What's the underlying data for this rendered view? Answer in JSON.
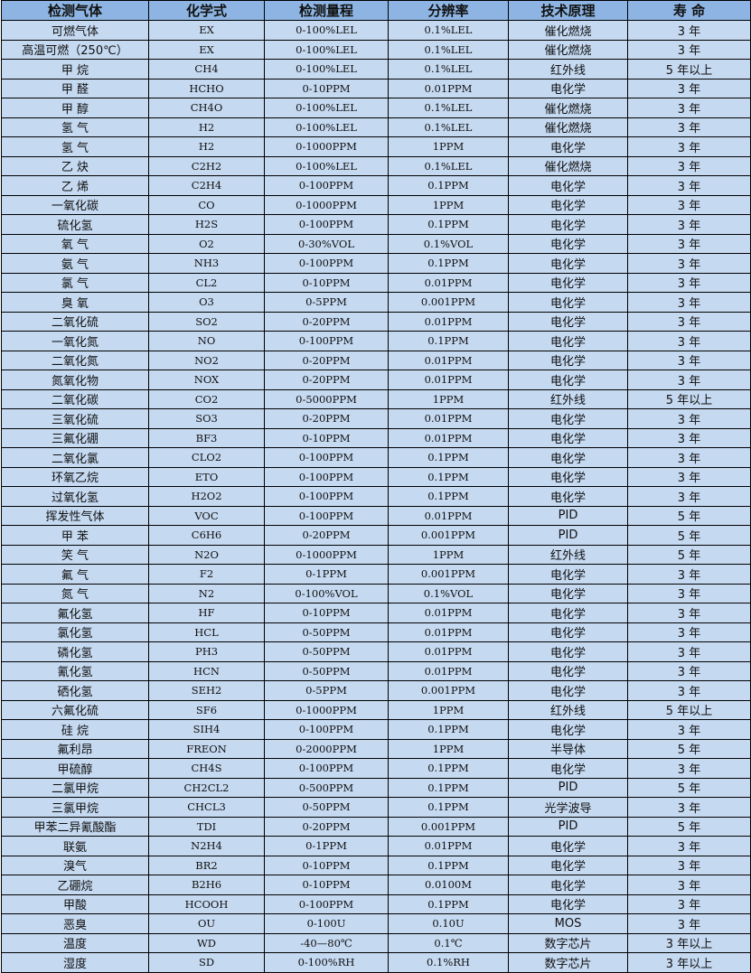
{
  "colors": {
    "header_bg": "#8db4e2",
    "row_bg": "#c5d9f1",
    "border": "#000000"
  },
  "headers": [
    "检测气体",
    "化学式",
    "检测量程",
    "分辨率",
    "技术原理",
    "寿 命"
  ],
  "rows": [
    [
      "可燃气体",
      "EX",
      "0-100%LEL",
      "0.1%LEL",
      "催化燃烧",
      "3 年"
    ],
    [
      "高温可燃（250℃）",
      "EX",
      "0-100%LEL",
      "0.1%LEL",
      "催化燃烧",
      "3 年"
    ],
    [
      "甲 烷",
      "CH4",
      "0-100%LEL",
      "0.1%LEL",
      "红外线",
      "5 年以上"
    ],
    [
      "甲 醛",
      "HCHO",
      "0-10PPM",
      "0.01PPM",
      "电化学",
      "3 年"
    ],
    [
      "甲 醇",
      "CH4O",
      "0-100%LEL",
      "0.1%LEL",
      "催化燃烧",
      "3 年"
    ],
    [
      "氢 气",
      "H2",
      "0-100%LEL",
      "0.1%LEL",
      "催化燃烧",
      "3 年"
    ],
    [
      "氢 气",
      "H2",
      "0-1000PPM",
      "1PPM",
      "电化学",
      "3 年"
    ],
    [
      "乙 炔",
      "C2H2",
      "0-100%LEL",
      "0.1%LEL",
      "催化燃烧",
      "3 年"
    ],
    [
      "乙 烯",
      "C2H4",
      "0-100PPM",
      "0.1PPM",
      "电化学",
      "3 年"
    ],
    [
      "一氧化碳",
      "CO",
      "0-1000PPM",
      "1PPM",
      "电化学",
      "3 年"
    ],
    [
      "硫化氢",
      "H2S",
      "0-100PPM",
      "0.1PPM",
      "电化学",
      "3 年"
    ],
    [
      "氧 气",
      "O2",
      "0-30%VOL",
      "0.1%VOL",
      "电化学",
      "3 年"
    ],
    [
      "氨 气",
      "NH3",
      "0-100PPM",
      "0.1PPM",
      "电化学",
      "3 年"
    ],
    [
      "氯 气",
      "CL2",
      "0-10PPM",
      "0.01PPM",
      "电化学",
      "3 年"
    ],
    [
      "臭 氧",
      "O3",
      "0-5PPM",
      "0.001PPM",
      "电化学",
      "3 年"
    ],
    [
      "二氧化硫",
      "SO2",
      "0-20PPM",
      "0.01PPM",
      "电化学",
      "3 年"
    ],
    [
      "一氧化氮",
      "NO",
      "0-100PPM",
      "0.1PPM",
      "电化学",
      "3 年"
    ],
    [
      "二氧化氮",
      "NO2",
      "0-20PPM",
      "0.01PPM",
      "电化学",
      "3 年"
    ],
    [
      "氮氧化物",
      "NOX",
      "0-20PPM",
      "0.01PPM",
      "电化学",
      "3 年"
    ],
    [
      "二氧化碳",
      "CO2",
      "0-5000PPM",
      "1PPM",
      "红外线",
      "5 年以上"
    ],
    [
      "三氧化硫",
      "SO3",
      "0-20PPM",
      "0.01PPM",
      "电化学",
      "3 年"
    ],
    [
      "三氟化硼",
      "BF3",
      "0-10PPM",
      "0.01PPM",
      "电化学",
      "3 年"
    ],
    [
      "二氧化氯",
      "CLO2",
      "0-100PPM",
      "0.1PPM",
      "电化学",
      "3 年"
    ],
    [
      "环氧乙烷",
      "ETO",
      "0-100PPM",
      "0.1PPM",
      "电化学",
      "3 年"
    ],
    [
      "过氧化氢",
      "H2O2",
      "0-100PPM",
      "0.1PPM",
      "电化学",
      "3 年"
    ],
    [
      "挥发性气体",
      "VOC",
      "0-100PPM",
      "0.01PPM",
      "PID",
      "5 年"
    ],
    [
      "甲 苯",
      "C6H6",
      "0-20PPM",
      "0.001PPM",
      "PID",
      "5 年"
    ],
    [
      "笑 气",
      "N2O",
      "0-1000PPM",
      "1PPM",
      "红外线",
      "5 年"
    ],
    [
      "氟 气",
      "F2",
      "0-1PPM",
      "0.001PPM",
      "电化学",
      "3 年"
    ],
    [
      "氮 气",
      "N2",
      "0-100%VOL",
      "0.1%VOL",
      "电化学",
      "3 年"
    ],
    [
      "氟化氢",
      "HF",
      "0-10PPM",
      "0.01PPM",
      "电化学",
      "3 年"
    ],
    [
      "氯化氢",
      "HCL",
      "0-50PPM",
      "0.01PPM",
      "电化学",
      "3 年"
    ],
    [
      "磷化氢",
      "PH3",
      "0-50PPM",
      "0.01PPM",
      "电化学",
      "3 年"
    ],
    [
      "氰化氢",
      "HCN",
      "0-50PPM",
      "0.01PPM",
      "电化学",
      "3 年"
    ],
    [
      "硒化氢",
      "SEH2",
      "0-5PPM",
      "0.001PPM",
      "电化学",
      "3 年"
    ],
    [
      "六氟化硫",
      "SF6",
      "0-1000PPM",
      "1PPM",
      "红外线",
      "5 年以上"
    ],
    [
      "硅 烷",
      "SIH4",
      "0-100PPM",
      "0.1PPM",
      "电化学",
      "3 年"
    ],
    [
      "氟利昂",
      "FREON",
      "0-2000PPM",
      "1PPM",
      "半导体",
      "5 年"
    ],
    [
      "甲硫醇",
      "CH4S",
      "0-100PPM",
      "0.1PPM",
      "电化学",
      "3 年"
    ],
    [
      "二氯甲烷",
      "CH2CL2",
      "0-500PPM",
      "0.1PPM",
      "PID",
      "5 年"
    ],
    [
      "三氯甲烷",
      "CHCL3",
      "0-50PPM",
      "0.1PPM",
      "光学波导",
      "3 年"
    ],
    [
      "甲苯二异氰酸酯",
      "TDI",
      "0-20PPM",
      "0.001PPM",
      "PID",
      "5 年"
    ],
    [
      "联氨",
      "N2H4",
      "0-1PPM",
      "0.01PPM",
      "电化学",
      "3 年"
    ],
    [
      "溴气",
      "BR2",
      "0-10PPM",
      "0.1PPM",
      "电化学",
      "3 年"
    ],
    [
      "乙硼烷",
      "B2H6",
      "0-10PPM",
      "0.0100M",
      "电化学",
      "3 年"
    ],
    [
      "甲酸",
      "HCOOH",
      "0-100PPM",
      "0.1PPM",
      "电化学",
      "3 年"
    ],
    [
      "恶臭",
      "OU",
      "0-100U",
      "0.10U",
      "MOS",
      "3 年"
    ],
    [
      "温度",
      "WD",
      "-40—80℃",
      "0.1℃",
      "数字芯片",
      "3 年以上"
    ],
    [
      "湿度",
      "SD",
      "0-100%RH",
      "0.1%RH",
      "数字芯片",
      "3 年以上"
    ]
  ]
}
